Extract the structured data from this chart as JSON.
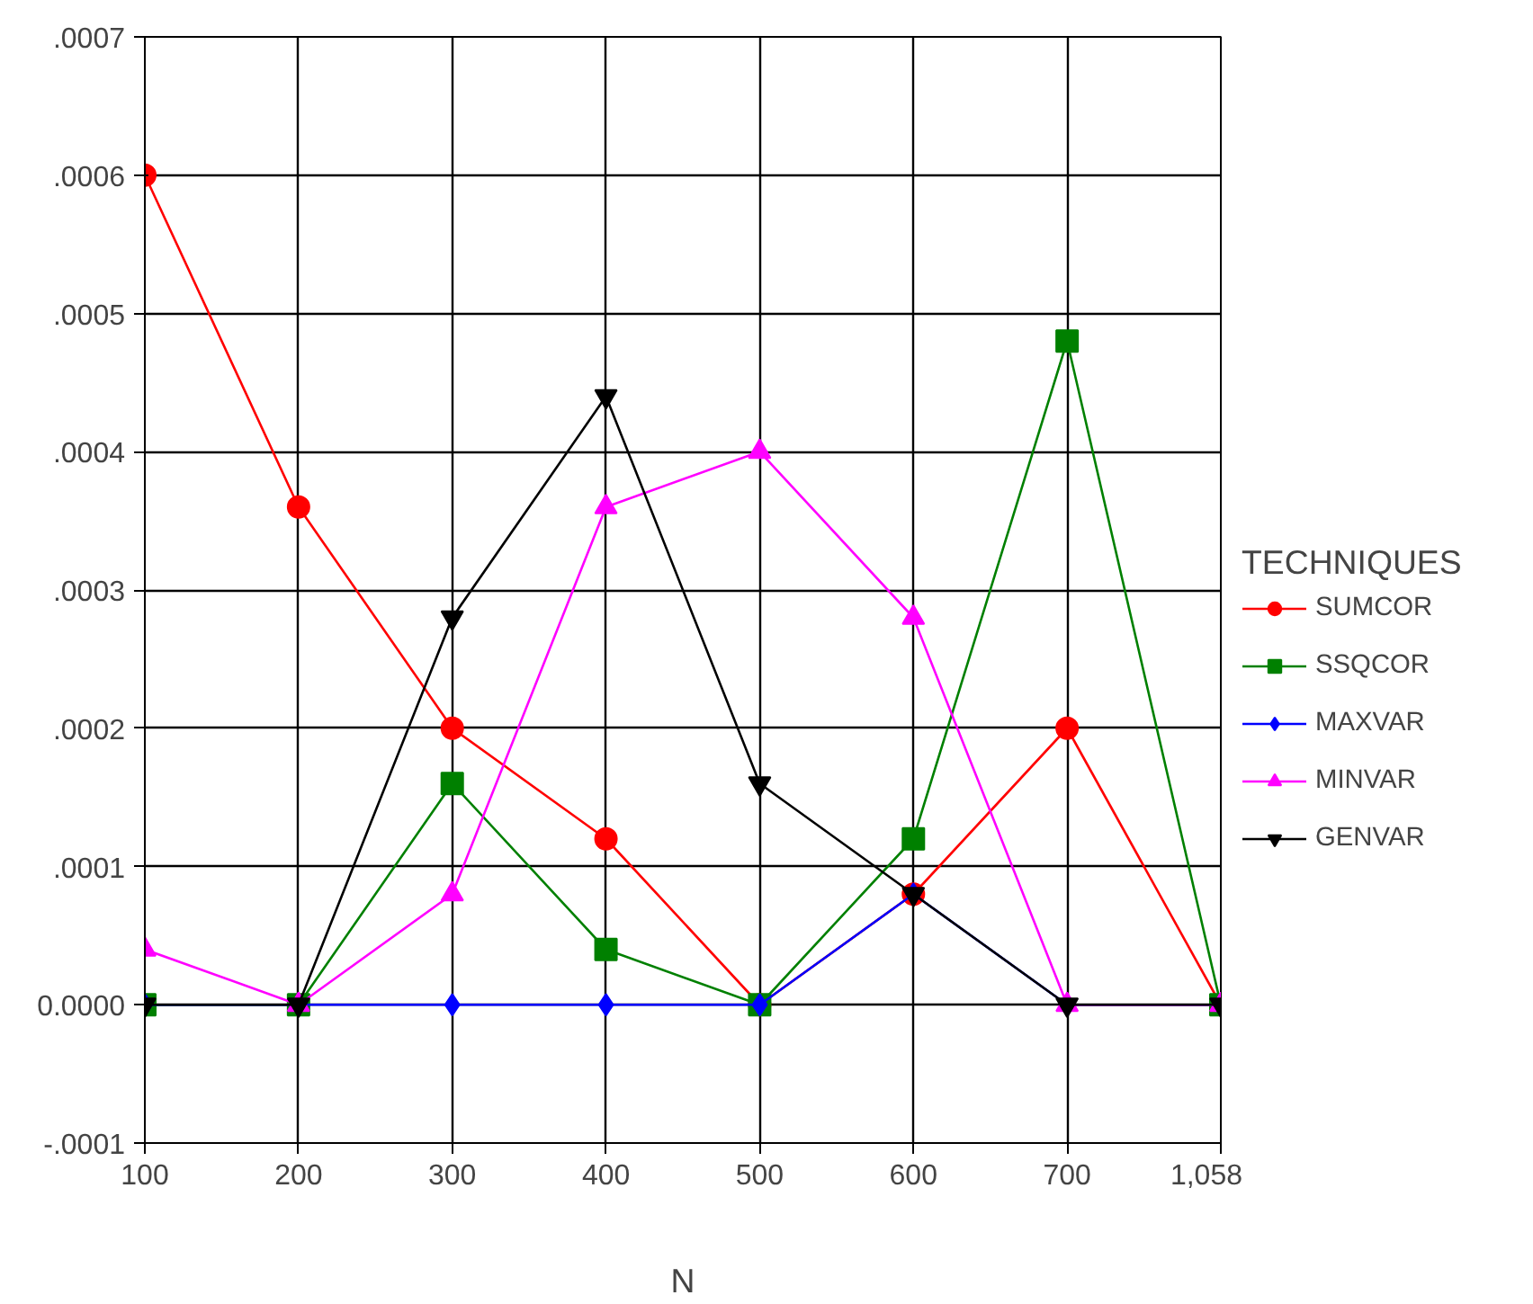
{
  "chart_data": {
    "type": "line",
    "xlabel": "N",
    "legend_title": "TECHNIQUES",
    "legend": "right",
    "grid": true,
    "categories": [
      "100",
      "200",
      "300",
      "400",
      "500",
      "600",
      "700",
      "1,058"
    ],
    "ylim": [
      -0.0001,
      0.0007
    ],
    "yticks": [
      {
        "value": -0.0001,
        "label": "-.0001"
      },
      {
        "value": 0,
        "label": "0.0000"
      },
      {
        "value": 0.0001,
        "label": ".0001"
      },
      {
        "value": 0.0002,
        "label": ".0002"
      },
      {
        "value": 0.0003,
        "label": ".0003"
      },
      {
        "value": 0.0004,
        "label": ".0004"
      },
      {
        "value": 0.0005,
        "label": ".0005"
      },
      {
        "value": 0.0006,
        "label": ".0006"
      },
      {
        "value": 0.0007,
        "label": ".0007"
      }
    ],
    "series": [
      {
        "name": "SUMCOR",
        "color": "#ff0000",
        "marker": "circle",
        "values": [
          0.0006,
          0.00036,
          0.0002,
          0.00012,
          0,
          8e-05,
          0.0002,
          0
        ]
      },
      {
        "name": "SSQCOR",
        "color": "#008000",
        "marker": "square",
        "values": [
          0,
          0,
          0.00016,
          4e-05,
          0,
          0.00012,
          0.00048,
          0
        ]
      },
      {
        "name": "MAXVAR",
        "color": "#0000ff",
        "marker": "diamond",
        "values": [
          0,
          0,
          0,
          0,
          0,
          8e-05,
          0,
          0
        ]
      },
      {
        "name": "MINVAR",
        "color": "#ff00ff",
        "marker": "triangle",
        "values": [
          4e-05,
          0,
          8e-05,
          0.00036,
          0.0004,
          0.00028,
          0,
          0
        ]
      },
      {
        "name": "GENVAR",
        "color": "#000000",
        "marker": "triangle_down",
        "values": [
          0,
          0,
          0.00028,
          0.00044,
          0.00016,
          8e-05,
          0,
          0
        ]
      }
    ]
  }
}
